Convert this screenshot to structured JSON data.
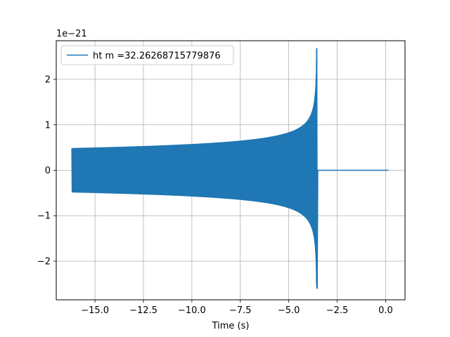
{
  "chart_data": {
    "type": "line",
    "xlabel": "Time (s)",
    "ylabel": "",
    "y_offset_label": "1e−21",
    "xlim": [
      -17.0,
      1.0
    ],
    "ylim": [
      -2.85,
      2.85
    ],
    "grid": true,
    "legend_position": "upper-left",
    "x_ticks": [
      -15.0,
      -12.5,
      -10.0,
      -7.5,
      -5.0,
      -2.5,
      0.0
    ],
    "x_tick_labels": [
      "−15.0",
      "−12.5",
      "−10.0",
      "−7.5",
      "−5.0",
      "−2.5",
      "0.0"
    ],
    "y_ticks": [
      -2,
      -1,
      0,
      1,
      2
    ],
    "y_tick_labels": [
      "−2",
      "−1",
      "0",
      "1",
      "2"
    ],
    "series": [
      {
        "name": "ht m =32.26268715779876",
        "color": "#1f77b4",
        "waveform": {
          "start_time": -16.2,
          "merger_time": -3.55,
          "end_time": 0.15,
          "start_amplitude": 0.48,
          "peak_amplitude_upper": 2.68,
          "peak_amplitude_lower": -2.6,
          "start_frequency_hz": 20
        }
      }
    ]
  }
}
